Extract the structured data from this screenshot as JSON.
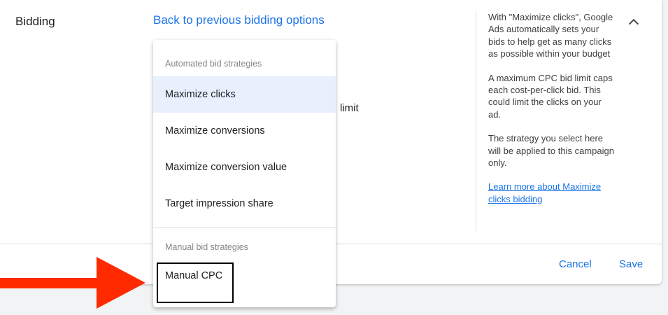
{
  "section": {
    "title": "Bidding",
    "back_link": "Back to previous bidding options",
    "partial_text": "limit"
  },
  "menu": {
    "automated_header": "Automated bid strategies",
    "automated": [
      {
        "label": "Maximize clicks",
        "selected": true
      },
      {
        "label": "Maximize conversions"
      },
      {
        "label": "Maximize conversion value"
      },
      {
        "label": "Target impression share"
      }
    ],
    "manual_header": "Manual bid strategies",
    "manual": [
      {
        "label": "Manual CPC",
        "highlighted": true
      }
    ]
  },
  "help": {
    "p1": "With \"Maximize clicks\", Google Ads automatically sets your bids to help get as many clicks as possible within your budget",
    "p2": "A maximum CPC bid limit caps each cost-per-click bid. This could limit the clicks on your ad.",
    "p3": "The strategy you select here will be applied to this campaign only.",
    "link": "Learn more about Maximize clicks bidding"
  },
  "actions": {
    "cancel": "Cancel",
    "save": "Save"
  },
  "colors": {
    "accent": "#1a73e8",
    "selected_bg": "#e8f0fe",
    "arrow": "#ff2a00"
  },
  "icons": {
    "collapse": "chevron-up-icon",
    "annotation": "red-arrow-icon"
  }
}
